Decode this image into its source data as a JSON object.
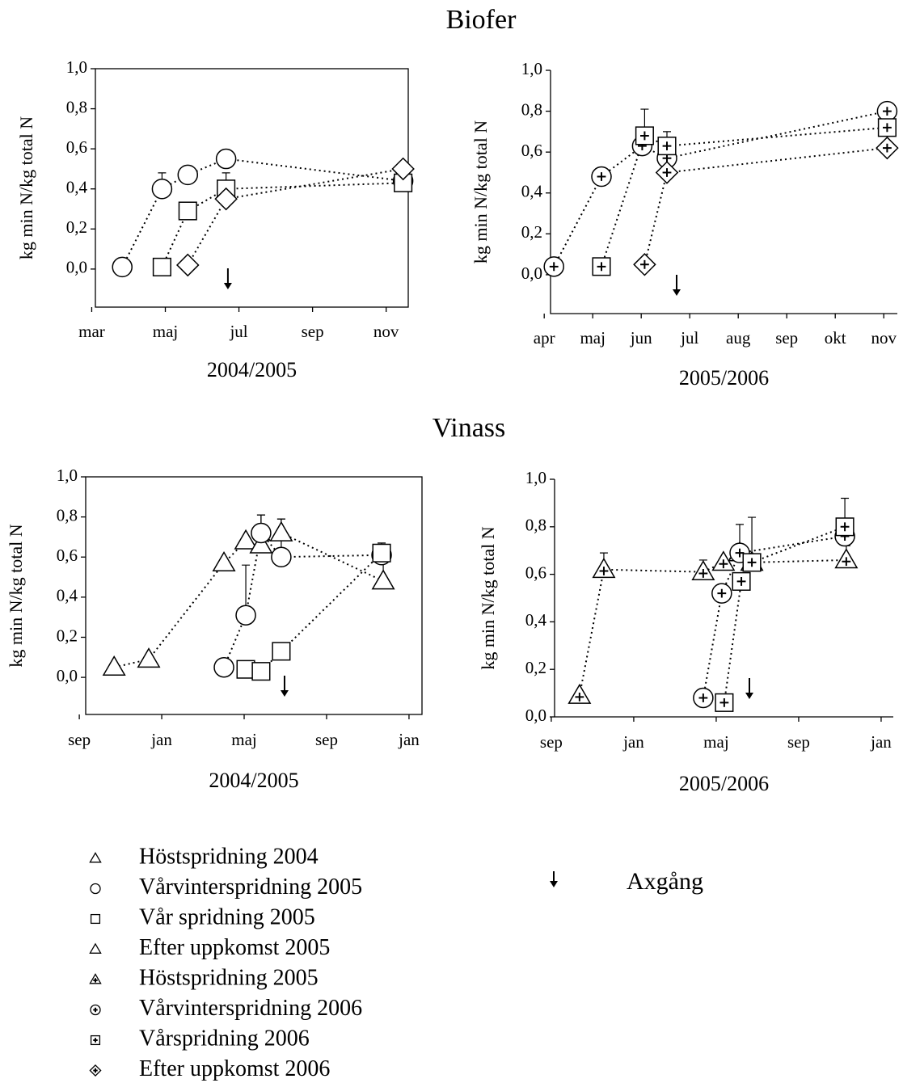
{
  "section_titles": [
    "Biofer",
    "Vinass"
  ],
  "legend": {
    "entries": [
      {
        "label": "Höstspridning 2004",
        "marker": "triangle",
        "plus": false
      },
      {
        "label": "Vårvinterspridning 2005",
        "marker": "circle",
        "plus": false
      },
      {
        "label": "Vår spridning 2005",
        "marker": "square",
        "plus": false
      },
      {
        "label": "Efter uppkomst 2005",
        "marker": "triangle",
        "plus": false
      },
      {
        "label": "Höstspridning 2005",
        "marker": "triangle",
        "plus": true
      },
      {
        "label": "Vårvinterspridning 2006",
        "marker": "circle",
        "plus": true
      },
      {
        "label": "Vårspridning 2006",
        "marker": "square",
        "plus": true
      },
      {
        "label": "Efter uppkomst 2006",
        "marker": "diamond",
        "plus": true
      }
    ],
    "harvest_label": "Axgång"
  },
  "chart_data": [
    {
      "type": "line",
      "frame": "box",
      "x_label": "2004/2005",
      "y_label": "kg min N/kg total N",
      "xlim": [
        3.1,
        11.6
      ],
      "ylim": [
        -0.19,
        1.0
      ],
      "xticks": [
        {
          "value": 3,
          "label": "mar"
        },
        {
          "value": 5,
          "label": "maj"
        },
        {
          "value": 7,
          "label": "jul"
        },
        {
          "value": 9,
          "label": "sep"
        },
        {
          "value": 11,
          "label": "nov"
        }
      ],
      "yticks": [
        {
          "value": 0,
          "label": "0,0"
        },
        {
          "value": 0.2,
          "label": "0,2"
        },
        {
          "value": 0.4,
          "label": "0,4"
        },
        {
          "value": 0.6,
          "label": "0,6"
        },
        {
          "value": 0.8,
          "label": "0,8"
        },
        {
          "value": 1,
          "label": "1,0"
        }
      ],
      "harvest_x": 6.7,
      "series": [
        {
          "marker": "circle",
          "plus": false,
          "x": [
            3.83,
            4.91,
            5.61,
            6.65,
            11.46
          ],
          "values": [
            0.01,
            0.4,
            0.47,
            0.55,
            0.44
          ],
          "errors": [
            null,
            0.08,
            null,
            null,
            null
          ]
        },
        {
          "marker": "square",
          "plus": false,
          "x": [
            4.91,
            5.61,
            6.65,
            11.46
          ],
          "values": [
            0.01,
            0.29,
            0.4,
            0.43
          ],
          "errors": [
            null,
            null,
            0.08,
            null
          ]
        },
        {
          "marker": "diamond",
          "plus": false,
          "x": [
            5.61,
            6.65,
            11.46
          ],
          "values": [
            0.02,
            0.35,
            0.5
          ],
          "errors": [
            null,
            null,
            null
          ]
        }
      ]
    },
    {
      "type": "line",
      "frame": "axes",
      "x_label": "2005/2006",
      "y_label": "kg min N/kg total N",
      "xlim": [
        4.13,
        11.28
      ],
      "ylim": [
        -0.19,
        1.0
      ],
      "xticks": [
        {
          "value": 4,
          "label": "apr"
        },
        {
          "value": 5,
          "label": "maj"
        },
        {
          "value": 6,
          "label": "jun"
        },
        {
          "value": 7,
          "label": "jul"
        },
        {
          "value": 8,
          "label": "aug"
        },
        {
          "value": 9,
          "label": "sep"
        },
        {
          "value": 10,
          "label": "okt"
        },
        {
          "value": 11,
          "label": "nov"
        }
      ],
      "yticks": [
        {
          "value": 0,
          "label": "0,0"
        },
        {
          "value": 0.2,
          "label": "0,2"
        },
        {
          "value": 0.4,
          "label": "0,4"
        },
        {
          "value": 0.6,
          "label": "0,6"
        },
        {
          "value": 0.8,
          "label": "0,8"
        },
        {
          "value": 1,
          "label": "1,0"
        }
      ],
      "harvest_x": 6.73,
      "series": [
        {
          "marker": "circle",
          "plus": true,
          "x": [
            4.2,
            5.18,
            6.02,
            6.53,
            11.07
          ],
          "values": [
            0.04,
            0.48,
            0.63,
            0.57,
            0.8
          ],
          "errors": [
            null,
            null,
            0.08,
            null,
            null
          ]
        },
        {
          "marker": "square",
          "plus": true,
          "x": [
            5.18,
            6.07,
            6.53,
            11.07
          ],
          "values": [
            0.04,
            0.68,
            0.63,
            0.72
          ],
          "errors": [
            null,
            0.13,
            0.07,
            null
          ]
        },
        {
          "marker": "diamond",
          "plus": true,
          "x": [
            6.07,
            6.53,
            11.07
          ],
          "values": [
            0.05,
            0.5,
            0.62
          ],
          "errors": [
            null,
            null,
            null
          ]
        }
      ]
    },
    {
      "type": "line",
      "frame": "box",
      "x_label": "2004/2005",
      "y_label": "kg min N/kg total N",
      "xlim": [
        9.31,
        25.63
      ],
      "ylim": [
        -0.185,
        1.0
      ],
      "xticks": [
        {
          "value": 9,
          "label": "sep"
        },
        {
          "value": 13,
          "label": "jan"
        },
        {
          "value": 17,
          "label": "maj"
        },
        {
          "value": 21,
          "label": "sep"
        },
        {
          "value": 25,
          "label": "jan"
        }
      ],
      "yticks": [
        {
          "value": 0,
          "label": "0,0"
        },
        {
          "value": 0.2,
          "label": "0,2"
        },
        {
          "value": 0.4,
          "label": "0,4"
        },
        {
          "value": 0.6,
          "label": "0,6"
        },
        {
          "value": 0.8,
          "label": "0,8"
        },
        {
          "value": 1,
          "label": "1,0"
        }
      ],
      "harvest_x": 18.96,
      "series": [
        {
          "marker": "triangle",
          "plus": false,
          "x": [
            10.69,
            12.37,
            16.02,
            17.08,
            17.82,
            18.8,
            23.75
          ],
          "values": [
            0.05,
            0.09,
            0.57,
            0.68,
            0.66,
            0.72,
            0.48
          ],
          "errors": [
            null,
            null,
            null,
            null,
            0.15,
            0.07,
            0.14
          ]
        },
        {
          "marker": "circle",
          "plus": false,
          "x": [
            16.02,
            17.08,
            17.82,
            18.8,
            23.67
          ],
          "values": [
            0.05,
            0.31,
            0.72,
            0.6,
            0.61
          ],
          "errors": [
            null,
            0.25,
            0.09,
            0.19,
            null
          ]
        },
        {
          "marker": "square",
          "plus": false,
          "x": [
            17.08,
            17.82,
            18.8,
            23.67
          ],
          "values": [
            0.04,
            0.03,
            0.13,
            0.62
          ],
          "errors": [
            null,
            null,
            null,
            0.05
          ]
        }
      ]
    },
    {
      "type": "line",
      "frame": "axes",
      "x_label": "2005/2006",
      "y_label": "kg min N/kg total N",
      "xlim": [
        9.16,
        25.59
      ],
      "ylim": [
        0,
        1.0
      ],
      "xticks": [
        {
          "value": 9,
          "label": "sep"
        },
        {
          "value": 13,
          "label": "jan"
        },
        {
          "value": 17,
          "label": "maj"
        },
        {
          "value": 21,
          "label": "sep"
        },
        {
          "value": 25,
          "label": "jan"
        }
      ],
      "yticks": [
        {
          "value": 0,
          "label": "0,0"
        },
        {
          "value": 0.2,
          "label": "0,2"
        },
        {
          "value": 0.4,
          "label": "0,4"
        },
        {
          "value": 0.6,
          "label": "0,6"
        },
        {
          "value": 0.8,
          "label": "0,8"
        },
        {
          "value": 1,
          "label": "1,0"
        }
      ],
      "harvest_x": 18.61,
      "series": [
        {
          "marker": "triangle",
          "plus": true,
          "x": [
            10.37,
            11.55,
            16.37,
            17.35,
            18.14,
            18.73,
            23.31
          ],
          "values": [
            0.09,
            0.62,
            0.61,
            0.65,
            0.69,
            0.65,
            0.66
          ],
          "errors": [
            null,
            0.07,
            0.05,
            null,
            0.12,
            0.19,
            0.06
          ]
        },
        {
          "marker": "circle",
          "plus": true,
          "x": [
            16.37,
            17.27,
            18.14,
            23.24
          ],
          "values": [
            0.08,
            0.52,
            0.69,
            0.76
          ],
          "errors": [
            null,
            null,
            null,
            null
          ]
        },
        {
          "marker": "square",
          "plus": true,
          "x": [
            17.39,
            18.22,
            18.73,
            23.24
          ],
          "values": [
            0.06,
            0.57,
            0.65,
            0.8
          ],
          "errors": [
            null,
            null,
            null,
            0.12
          ]
        }
      ]
    }
  ]
}
